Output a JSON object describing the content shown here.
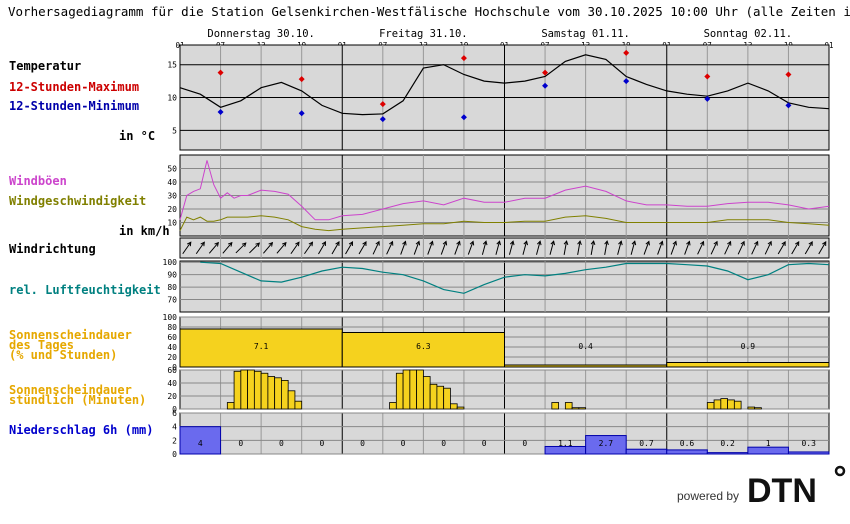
{
  "title": "Vorhersagediagramm für die Station Gelsenkirchen-Westfälische Hochschule vom 30.10.2025 10:00 Uhr (alle Zeiten in MEZ)",
  "days": [
    "Donnerstag 30.10.",
    "Freitag 31.10.",
    "Samstag 01.11.",
    "Sonntag 02.11."
  ],
  "hour_ticks": [
    "01",
    "07",
    "13",
    "19",
    "01",
    "07",
    "13",
    "19",
    "01",
    "07",
    "13",
    "19",
    "01",
    "07",
    "13",
    "19",
    "01"
  ],
  "labels": {
    "temperatur": "Temperatur",
    "max": "12-Stunden-Maximum",
    "min": "12-Stunden-Minimum",
    "temp_unit": "in °C",
    "windboeen": "Windböen",
    "windgeschw": "Windgeschwindigkeit",
    "wind_unit": "in km/h",
    "windrichtung": "Windrichtung",
    "feuchte": "rel. Luftfeuchtigkeit",
    "sonne_tag_1": "Sonnenscheindauer",
    "sonne_tag_2": "des Tages",
    "sonne_tag_3": "(% und Stunden)",
    "sonne_std_1": "Sonnenscheindauer",
    "sonne_std_2": "stündlich (Minuten)",
    "niederschlag": "Niederschlag 6h (mm)"
  },
  "branding": {
    "powered": "powered by",
    "logo": "DTN"
  },
  "colors": {
    "max": "#dd0000",
    "min": "#0000cc",
    "gust": "#cc44cc",
    "wind": "#808000",
    "humidity": "#008080",
    "sun": "#f5d21e",
    "precip": "#6a6aee",
    "panel": "#d8d8d8"
  },
  "chart_data": {
    "type": "line",
    "x_unit": "hours since 30.10. 01:00",
    "temperature": {
      "axis": {
        "ticks": [
          5,
          10,
          15
        ],
        "range": [
          2,
          18
        ]
      },
      "x": [
        0,
        3,
        6,
        9,
        12,
        15,
        18,
        21,
        24,
        27,
        30,
        33,
        36,
        39,
        42,
        45,
        48,
        51,
        54,
        57,
        60,
        63,
        66,
        69,
        72,
        75,
        78,
        81,
        84,
        87,
        90,
        93,
        96
      ],
      "values": [
        11.5,
        10.5,
        8.5,
        9.5,
        11.5,
        12.3,
        11,
        8.8,
        7.6,
        7.4,
        7.5,
        9.5,
        14.5,
        15,
        13.5,
        12.5,
        12.2,
        12.5,
        13.2,
        15.5,
        16.5,
        15.8,
        13.2,
        12,
        11,
        10.5,
        10.2,
        11,
        12.2,
        11,
        9.2,
        8.5,
        8.3
      ],
      "max": [
        {
          "x": 6,
          "v": 13.8
        },
        {
          "x": 18,
          "v": 12.8
        },
        {
          "x": 30,
          "v": 9
        },
        {
          "x": 42,
          "v": 16
        },
        {
          "x": 54,
          "v": 13.8
        },
        {
          "x": 66,
          "v": 16.8
        },
        {
          "x": 78,
          "v": 13.2
        },
        {
          "x": 90,
          "v": 13.5
        }
      ],
      "min": [
        {
          "x": 6,
          "v": 7.8
        },
        {
          "x": 18,
          "v": 7.6
        },
        {
          "x": 30,
          "v": 6.7
        },
        {
          "x": 42,
          "v": 7
        },
        {
          "x": 54,
          "v": 11.8
        },
        {
          "x": 66,
          "v": 12.5
        },
        {
          "x": 78,
          "v": 9.8
        },
        {
          "x": 90,
          "v": 8.8
        }
      ]
    },
    "wind": {
      "axis": {
        "ticks": [
          10,
          20,
          30,
          40,
          50
        ],
        "range": [
          0,
          60
        ]
      },
      "x": [
        0,
        1,
        2,
        3,
        4,
        5,
        6,
        7,
        8,
        9,
        10,
        12,
        14,
        16,
        18,
        20,
        22,
        24,
        27,
        30,
        33,
        36,
        39,
        42,
        45,
        48,
        51,
        54,
        57,
        60,
        63,
        66,
        69,
        72,
        75,
        78,
        81,
        84,
        87,
        90,
        93,
        96
      ],
      "gusts": [
        12,
        30,
        33,
        35,
        56,
        38,
        28,
        32,
        28,
        30,
        30,
        34,
        33,
        31,
        22,
        12,
        12,
        15,
        16,
        20,
        24,
        26,
        23,
        28,
        25,
        25,
        28,
        28,
        34,
        37,
        33,
        26,
        23,
        23,
        22,
        22,
        24,
        25,
        25,
        23,
        20,
        22
      ],
      "speed": [
        4,
        14,
        12,
        14,
        11,
        11,
        12,
        14,
        14,
        14,
        14,
        15,
        14,
        12,
        7,
        5,
        4,
        5,
        6,
        7,
        8,
        9,
        9,
        11,
        10,
        10,
        11,
        11,
        14,
        15,
        13,
        10,
        10,
        10,
        10,
        10,
        12,
        12,
        12,
        10,
        9,
        8
      ]
    },
    "wind_direction_deg": [
      35,
      35,
      40,
      40,
      45,
      45,
      40,
      40,
      35,
      35,
      30,
      30,
      30,
      30,
      25,
      25,
      20,
      20,
      20,
      20,
      20,
      20,
      15,
      15,
      15,
      15,
      15,
      15,
      10,
      10,
      10,
      10,
      15,
      15,
      20,
      20,
      20,
      20,
      25,
      25,
      25,
      25,
      25,
      25,
      30,
      30,
      30,
      30
    ],
    "humidity": {
      "axis": {
        "ticks": [
          70,
          80,
          90,
          100
        ],
        "range": [
          60,
          101
        ]
      },
      "x": [
        3,
        6,
        9,
        12,
        15,
        18,
        21,
        24,
        27,
        30,
        33,
        36,
        39,
        42,
        45,
        48,
        51,
        54,
        57,
        60,
        63,
        66,
        69,
        72,
        75,
        78,
        81,
        84,
        87,
        90,
        93,
        96
      ],
      "values": [
        100,
        99,
        92,
        85,
        84,
        88,
        93,
        96,
        95,
        92,
        90,
        85,
        78,
        75,
        82,
        88,
        90,
        89,
        91,
        94,
        96,
        99,
        99,
        99,
        98,
        97,
        93,
        86,
        90,
        98,
        99,
        98
      ]
    },
    "sunshine_daily": {
      "axis": {
        "ticks": [
          0,
          20,
          40,
          60,
          80,
          100
        ]
      },
      "percent": [
        76,
        69,
        4,
        9
      ],
      "hours": [
        "7.1",
        "6.3",
        "0.4",
        "0.9"
      ]
    },
    "sunshine_hourly": {
      "axis": {
        "ticks": [
          0,
          20,
          40,
          60
        ]
      },
      "x": [
        7,
        8,
        9,
        10,
        11,
        12,
        13,
        14,
        15,
        16,
        17,
        31,
        32,
        33,
        34,
        35,
        36,
        37,
        38,
        39,
        40,
        41,
        55,
        57,
        58,
        59,
        60,
        61,
        62,
        63,
        64,
        65,
        67,
        68,
        69,
        70,
        71,
        72,
        73,
        74,
        75,
        78,
        79,
        80,
        81,
        82,
        83,
        84,
        85,
        86,
        87,
        88
      ],
      "minutes": [
        10,
        58,
        60,
        60,
        58,
        55,
        50,
        48,
        44,
        28,
        12,
        10,
        55,
        60,
        60,
        60,
        50,
        38,
        35,
        32,
        8,
        3,
        10,
        10,
        2,
        2,
        0,
        0,
        0,
        0,
        0,
        0,
        0,
        0,
        0,
        0,
        0,
        0,
        0,
        0,
        0,
        10,
        14,
        16,
        14,
        12,
        0,
        3,
        2,
        0,
        0,
        0
      ]
    },
    "precipitation": {
      "axis": {
        "ticks": [
          0,
          2,
          4,
          6
        ]
      },
      "intervals_start": [
        0,
        6,
        12,
        18,
        24,
        30,
        36,
        42,
        48,
        54,
        60,
        66,
        72,
        78,
        84,
        90
      ],
      "values": [
        4,
        0,
        0,
        0,
        0,
        0,
        0,
        0,
        0,
        1.1,
        2.7,
        0.7,
        0.6,
        0.2,
        1,
        0.3
      ],
      "labels": [
        "4",
        "0",
        "0",
        "0",
        "0",
        "0",
        "0",
        "0",
        "0",
        "1.1",
        "2.7",
        "0.7",
        "0.6",
        "0.2",
        "1",
        "0.3"
      ]
    }
  }
}
